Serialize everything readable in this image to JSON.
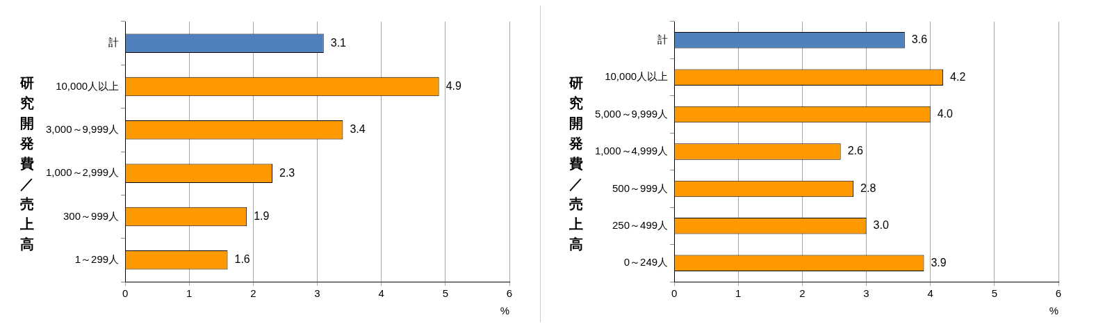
{
  "chart_data": [
    {
      "type": "bar",
      "orientation": "horizontal",
      "ylabel": "研究開発費／売上高",
      "xlabel": "%",
      "categories": [
        "計",
        "10,000人以上",
        "3,000～9,999人",
        "1,000～2,999人",
        "300～999人",
        "1～299人"
      ],
      "values": [
        3.1,
        4.9,
        3.4,
        2.3,
        1.9,
        1.6
      ],
      "value_labels": [
        "3.1",
        "4.9",
        "3.4",
        "2.3",
        "1.9",
        "1.6"
      ],
      "colors": [
        "#4f81bd",
        "#ff9900",
        "#ff9900",
        "#ff9900",
        "#ff9900",
        "#ff9900"
      ],
      "xlim": [
        0,
        6
      ],
      "xticks": [
        0,
        1,
        2,
        3,
        4,
        5,
        6
      ],
      "grid": "x",
      "legend": false
    },
    {
      "type": "bar",
      "orientation": "horizontal",
      "ylabel": "研究開発費／売上高",
      "xlabel": "%",
      "categories": [
        "計",
        "10,000人以上",
        "5,000～9,999人",
        "1,000～4,999人",
        "500～999人",
        "250～499人",
        "0～249人"
      ],
      "values": [
        3.6,
        4.2,
        4.0,
        2.6,
        2.8,
        3.0,
        3.9
      ],
      "value_labels": [
        "3.6",
        "4.2",
        "4.0",
        "2.6",
        "2.8",
        "3.0",
        "3.9"
      ],
      "colors": [
        "#4f81bd",
        "#ff9900",
        "#ff9900",
        "#ff9900",
        "#ff9900",
        "#ff9900",
        "#ff9900"
      ],
      "xlim": [
        0,
        6
      ],
      "xticks": [
        0,
        1,
        2,
        3,
        4,
        5,
        6
      ],
      "grid": "x",
      "legend": false
    }
  ]
}
